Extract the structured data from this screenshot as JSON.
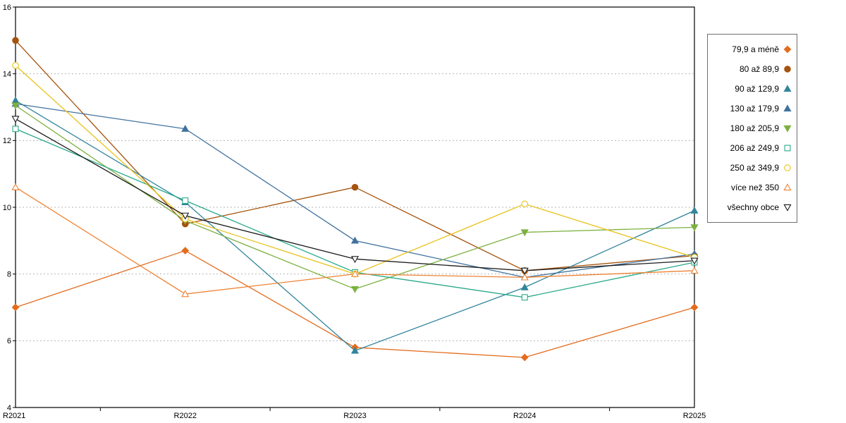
{
  "chart_data": {
    "type": "line",
    "title": "",
    "xlabel": "",
    "ylabel": "",
    "categories": [
      "R2021",
      "R2022",
      "R2023",
      "R2024",
      "R2025"
    ],
    "ylim": [
      4,
      16
    ],
    "ytick_step": 2,
    "grid": "horizontal dotted at 6, 8, 10, 12, 14",
    "legend_position": "right",
    "plot_border_color": "#000000",
    "gridline_color": "#b5b5b5",
    "series": [
      {
        "name": "79,9 a méně",
        "values": [
          7.0,
          8.7,
          5.8,
          5.5,
          7.0
        ],
        "color": "#E36C1E",
        "marker": "diamond",
        "fill": "solid"
      },
      {
        "name": "80 až 89,9",
        "values": [
          15.0,
          9.5,
          10.6,
          8.1,
          8.55
        ],
        "color": "#A5530D",
        "marker": "circle",
        "fill": "solid"
      },
      {
        "name": "90 až 129,9",
        "values": [
          13.2,
          10.15,
          5.7,
          7.6,
          9.9
        ],
        "color": "#31859C",
        "marker": "triangle-up",
        "fill": "solid"
      },
      {
        "name": "130 až 179,9",
        "values": [
          13.1,
          12.35,
          9.0,
          7.9,
          8.6
        ],
        "color": "#41729F",
        "marker": "triangle-up",
        "fill": "solid"
      },
      {
        "name": "180 až 205,9",
        "values": [
          13.05,
          9.6,
          7.55,
          9.25,
          9.4
        ],
        "color": "#7CB13F",
        "marker": "triangle-down",
        "fill": "solid"
      },
      {
        "name": "206 až 249,9",
        "values": [
          12.35,
          10.2,
          8.05,
          7.3,
          8.35
        ],
        "color": "#29A98B",
        "marker": "square",
        "fill": "open"
      },
      {
        "name": "250 až 349,9",
        "values": [
          14.25,
          9.65,
          8.0,
          10.1,
          8.5
        ],
        "color": "#E8C21A",
        "marker": "circle",
        "fill": "open"
      },
      {
        "name": "více než 350",
        "values": [
          10.6,
          7.4,
          8.0,
          7.9,
          8.1
        ],
        "color": "#EE8333",
        "marker": "triangle-up",
        "fill": "open"
      },
      {
        "name": "všechny obce",
        "values": [
          12.65,
          9.75,
          8.45,
          8.1,
          8.4
        ],
        "color": "#1A1A1A",
        "marker": "triangle-down",
        "fill": "open"
      }
    ]
  }
}
